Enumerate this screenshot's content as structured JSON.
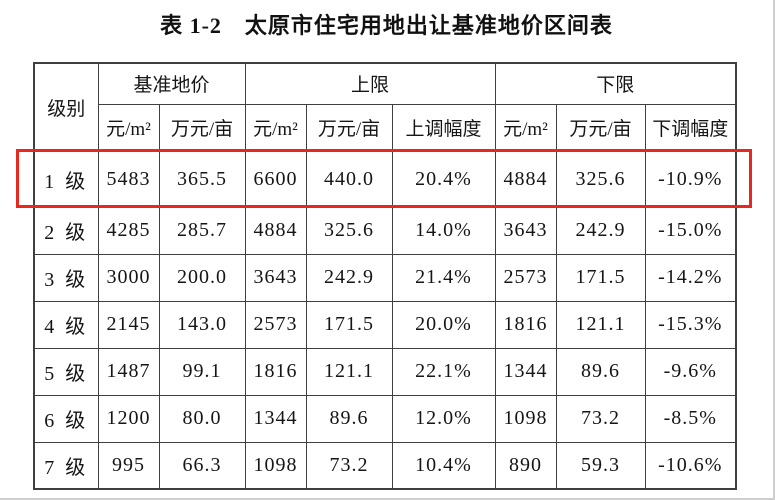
{
  "title": "表 1-2　太原市住宅用地出让基准地价区间表",
  "colors": {
    "highlight_border": "#e8281e",
    "table_border": "#3f3f3f",
    "page_edge": "#cfcfcf"
  },
  "table": {
    "level_header": "级别",
    "groups": [
      {
        "label": "基准地价",
        "span": 2
      },
      {
        "label": "上限",
        "span": 3
      },
      {
        "label": "下限",
        "span": 3
      }
    ],
    "subheaders": [
      "元/m²",
      "万元/亩",
      "元/m²",
      "万元/亩",
      "上调幅度",
      "元/m²",
      "万元/亩",
      "下调幅度"
    ],
    "rows": [
      {
        "level": "1 级",
        "highlighted": true,
        "cells": [
          "5483",
          "365.5",
          "6600",
          "440.0",
          "20.4%",
          "4884",
          "325.6",
          "-10.9%"
        ]
      },
      {
        "level": "2 级",
        "highlighted": false,
        "cells": [
          "4285",
          "285.7",
          "4884",
          "325.6",
          "14.0%",
          "3643",
          "242.9",
          "-15.0%"
        ]
      },
      {
        "level": "3 级",
        "highlighted": false,
        "cells": [
          "3000",
          "200.0",
          "3643",
          "242.9",
          "21.4%",
          "2573",
          "171.5",
          "-14.2%"
        ]
      },
      {
        "level": "4 级",
        "highlighted": false,
        "cells": [
          "2145",
          "143.0",
          "2573",
          "171.5",
          "20.0%",
          "1816",
          "121.1",
          "-15.3%"
        ]
      },
      {
        "level": "5 级",
        "highlighted": false,
        "cells": [
          "1487",
          "99.1",
          "1816",
          "121.1",
          "22.1%",
          "1344",
          "89.6",
          "-9.6%"
        ]
      },
      {
        "level": "6 级",
        "highlighted": false,
        "cells": [
          "1200",
          "80.0",
          "1344",
          "89.6",
          "12.0%",
          "1098",
          "73.2",
          "-8.5%"
        ]
      },
      {
        "level": "7 级",
        "highlighted": false,
        "cells": [
          "995",
          "66.3",
          "1098",
          "73.2",
          "10.4%",
          "890",
          "59.3",
          "-10.6%"
        ]
      }
    ]
  }
}
